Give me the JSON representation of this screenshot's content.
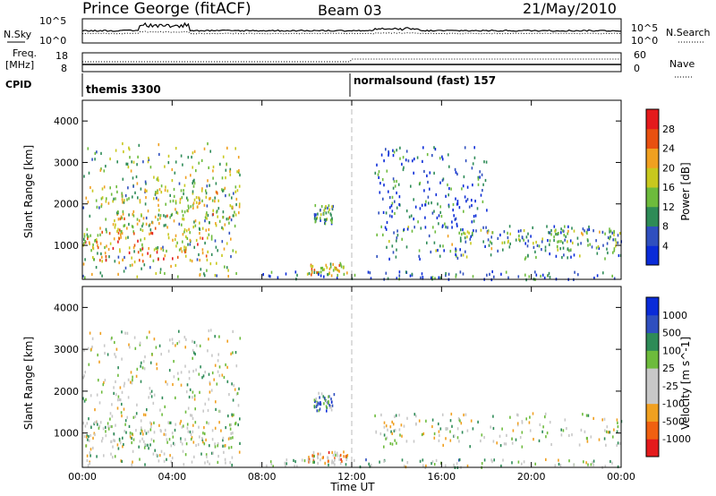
{
  "header": {
    "station": "Prince George (fitACF)",
    "beam": "Beam 03",
    "date": "21/May/2010"
  },
  "summary_panel": {
    "nsky_label": "N.Sky",
    "nsearch_label": "N.Search",
    "freq_label_1": "Freq.",
    "freq_label_2": "[MHz]",
    "nave_label": "Nave",
    "cpid_label": "CPID",
    "left_ticks_top": [
      "10^5",
      "10^0"
    ],
    "right_ticks_top": [
      "10^5",
      "10^0"
    ],
    "left_ticks_freq": [
      "18",
      "8"
    ],
    "right_ticks_nave": [
      "60",
      "0"
    ],
    "cpid_segments": [
      {
        "label": "themis 3300",
        "start_hour": 0
      },
      {
        "label": "normalsound (fast) 157",
        "start_hour": 12
      }
    ]
  },
  "axes": {
    "xlabel": "Time UT",
    "x_ticks": [
      "00:00",
      "04:00",
      "08:00",
      "12:00",
      "16:00",
      "20:00",
      "00:00"
    ],
    "xlim_hours": [
      0,
      24
    ],
    "ylabel": "Slant Range [km]",
    "y_ticks": [
      "1000",
      "2000",
      "3000",
      "4000"
    ],
    "ylim_km": [
      180,
      4500
    ]
  },
  "chart_data": [
    {
      "type": "heatmap",
      "quantity": "Power",
      "colorbar_label": "Power [dB]",
      "colorbar_ticks": [
        "4",
        "8",
        "12",
        "16",
        "20",
        "24",
        "28"
      ],
      "range": [
        0,
        30
      ],
      "colors": [
        "#0a2bd8",
        "#2f4fbf",
        "#2e8b57",
        "#6dbb3c",
        "#c8c81e",
        "#f0a020",
        "#e85010",
        "#e41a1c"
      ],
      "scatter_regions": [
        {
          "t0": 0.0,
          "t1": 7.0,
          "r0": 250,
          "r1": 3500,
          "level": 14
        },
        {
          "t0": 0.0,
          "t1": 5.5,
          "r0": 650,
          "r1": 1400,
          "level": 20
        },
        {
          "t0": 1.0,
          "t1": 7.0,
          "r0": 1400,
          "r1": 2400,
          "level": 16
        },
        {
          "t0": 10.3,
          "t1": 11.2,
          "r0": 1550,
          "r1": 2000,
          "level": 10
        },
        {
          "t0": 10.0,
          "t1": 11.8,
          "r0": 300,
          "r1": 600,
          "level": 18
        },
        {
          "t0": 13.0,
          "t1": 24.0,
          "r0": 700,
          "r1": 1500,
          "level": 8
        },
        {
          "t0": 16.0,
          "t1": 24.0,
          "r0": 900,
          "r1": 1400,
          "level": 12
        },
        {
          "t0": 8.0,
          "t1": 24.0,
          "r0": 200,
          "r1": 400,
          "level": 6
        },
        {
          "t0": 13.0,
          "t1": 18.0,
          "r0": 1500,
          "r1": 3400,
          "level": 5
        }
      ]
    },
    {
      "type": "heatmap",
      "quantity": "Velocity",
      "colorbar_label": "Velocity [m s^-1]",
      "colorbar_ticks": [
        "1000",
        "500",
        "100",
        "25",
        "-25",
        "-100",
        "-500",
        "-1000"
      ],
      "range": [
        -1000,
        1000
      ],
      "colors": [
        "#e41a1c",
        "#f06010",
        "#f0a020",
        "#c8c8c8",
        "#c8c8c8",
        "#6dbb3c",
        "#2e8b57",
        "#2f4fbf",
        "#0a2bd8"
      ],
      "scatter_regions": [
        {
          "t0": 0.0,
          "t1": 7.0,
          "r0": 250,
          "r1": 3500,
          "level": 0
        },
        {
          "t0": 0.0,
          "t1": 7.0,
          "r0": 700,
          "r1": 1300,
          "level": 0
        },
        {
          "t0": 10.3,
          "t1": 11.2,
          "r0": 1550,
          "r1": 2000,
          "level": 400
        },
        {
          "t0": 10.0,
          "t1": 11.8,
          "r0": 300,
          "r1": 600,
          "level": -300
        },
        {
          "t0": 13.0,
          "t1": 24.0,
          "r0": 700,
          "r1": 1500,
          "level": 0
        },
        {
          "t0": 8.0,
          "t1": 24.0,
          "r0": 200,
          "r1": 400,
          "level": 80
        }
      ]
    }
  ]
}
